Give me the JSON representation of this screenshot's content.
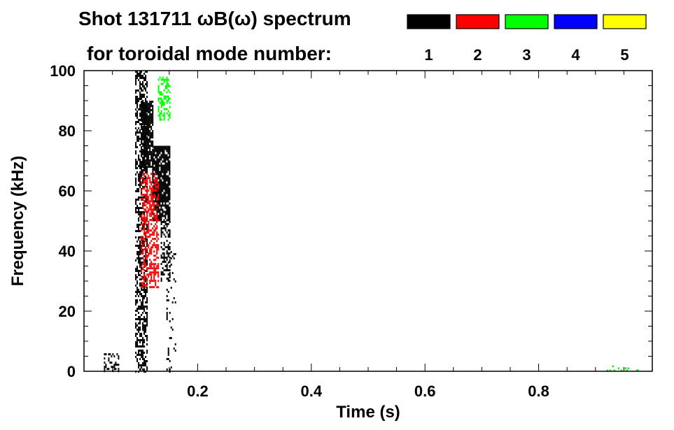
{
  "chart_data": {
    "type": "heatmap",
    "title": "Shot 131711 ωB(ω) spectrum",
    "subtitle": "for toroidal mode number:",
    "xlabel": "Time (s)",
    "ylabel": "Frequency (kHz)",
    "xlim": [
      0.0,
      1.0
    ],
    "ylim": [
      0,
      100
    ],
    "x_ticks": [
      {
        "value": 0.2,
        "label": "0.2"
      },
      {
        "value": 0.4,
        "label": "0.4"
      },
      {
        "value": 0.6,
        "label": "0.6"
      },
      {
        "value": 0.8,
        "label": "0.8"
      }
    ],
    "y_ticks": [
      {
        "value": 0,
        "label": "0"
      },
      {
        "value": 20,
        "label": "20"
      },
      {
        "value": 40,
        "label": "40"
      },
      {
        "value": 60,
        "label": "60"
      },
      {
        "value": 80,
        "label": "80"
      },
      {
        "value": 100,
        "label": "100"
      }
    ],
    "legend_placement": "top-right",
    "legend": [
      {
        "label": "1",
        "color": "#000000"
      },
      {
        "label": "2",
        "color": "#ff0000"
      },
      {
        "label": "3",
        "color": "#00ff00"
      },
      {
        "label": "4",
        "color": "#0000ff"
      },
      {
        "label": "5",
        "color": "#ffff00"
      }
    ],
    "regions": [
      {
        "mode": "1",
        "t": [
          0.09,
          0.11
        ],
        "f": [
          0,
          100
        ],
        "density": 0.55
      },
      {
        "mode": "1",
        "t": [
          0.1,
          0.12
        ],
        "f": [
          68,
          90
        ],
        "density": 0.8
      },
      {
        "mode": "1",
        "t": [
          0.12,
          0.15
        ],
        "f": [
          50,
          75
        ],
        "density": 0.85
      },
      {
        "mode": "1",
        "t": [
          0.135,
          0.15
        ],
        "f": [
          30,
          50
        ],
        "density": 0.5
      },
      {
        "mode": "1",
        "t": [
          0.145,
          0.16
        ],
        "f": [
          0,
          40
        ],
        "density": 0.15
      },
      {
        "mode": "1",
        "t": [
          0.035,
          0.06
        ],
        "f": [
          0,
          6
        ],
        "density": 0.3
      },
      {
        "mode": "2",
        "t": [
          0.1,
          0.13
        ],
        "f": [
          28,
          66
        ],
        "density": 0.5
      },
      {
        "mode": "3",
        "t": [
          0.13,
          0.15
        ],
        "f": [
          84,
          98
        ],
        "density": 0.45
      },
      {
        "mode": "3",
        "t": [
          0.91,
          0.99
        ],
        "f": [
          0,
          2
        ],
        "density": 0.08
      }
    ]
  }
}
